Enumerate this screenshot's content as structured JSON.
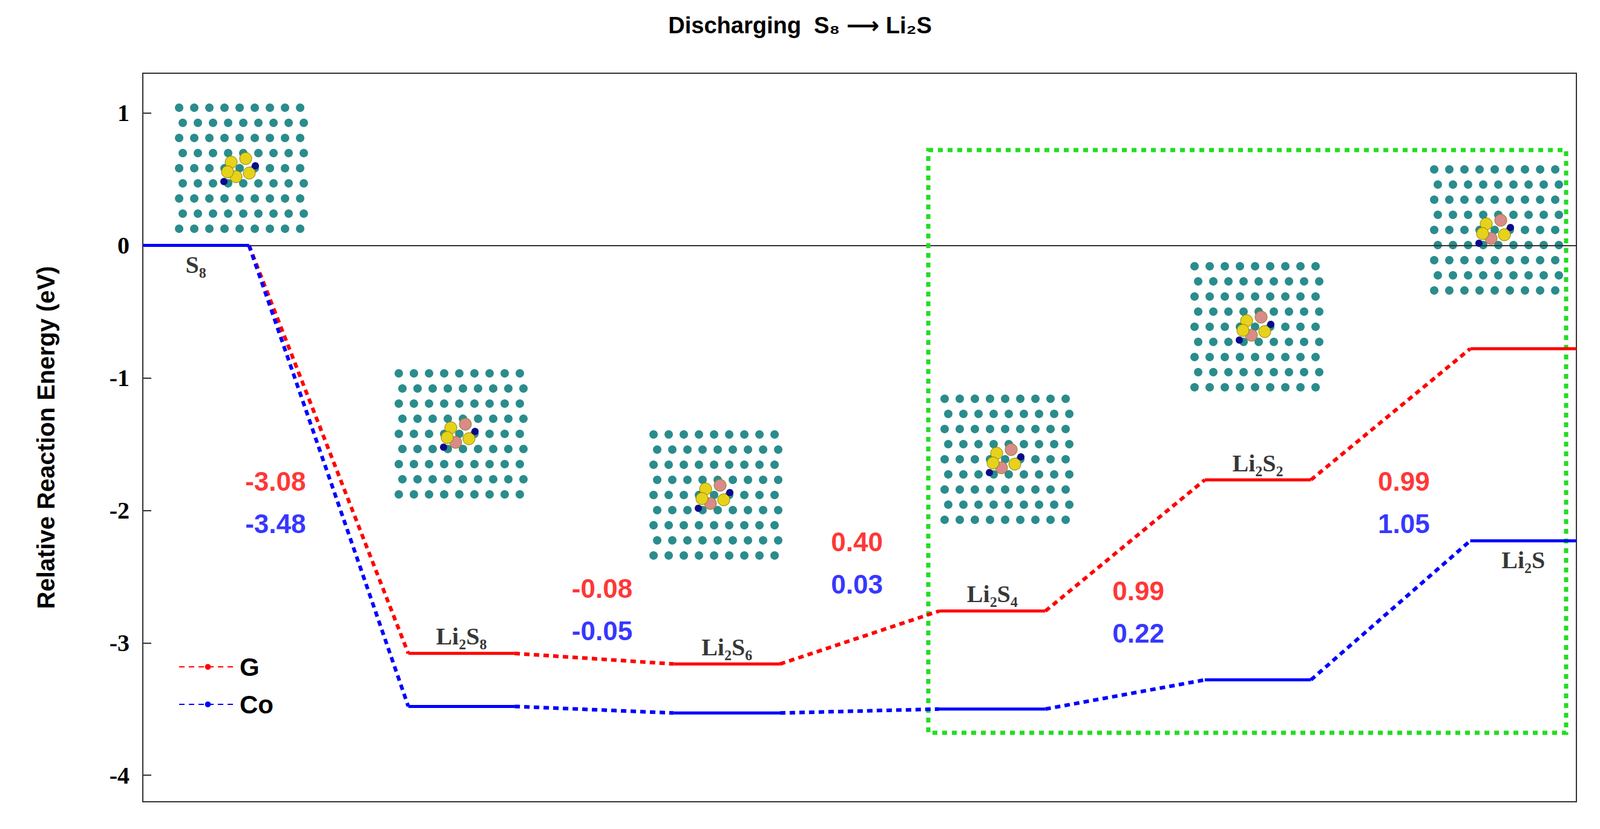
{
  "chart_data": {
    "type": "energy_profile",
    "title": "Discharging  S₈ ⟶ Li₂S",
    "y_label": "Relative Reaction Energy (eV)",
    "categories": [
      "S₈",
      "Li₂S₈",
      "Li₂S₆",
      "Li₂S₄",
      "Li₂S₂",
      "Li₂S"
    ],
    "series": [
      {
        "name": "G",
        "color": "#ff0000",
        "line_style": "dotted",
        "values": [
          0,
          -3.08,
          -3.16,
          -2.76,
          -1.77,
          -0.78
        ],
        "steps": [
          -3.08,
          -0.08,
          0.4,
          0.99,
          0.99
        ],
        "step_labels": [
          "-3.08",
          "-0.08",
          "0.40",
          "0.99",
          "0.99"
        ]
      },
      {
        "name": "Co",
        "color": "#0000ff",
        "line_style": "dotted",
        "values": [
          0,
          -3.48,
          -3.53,
          -3.5,
          -3.28,
          -2.23
        ],
        "steps": [
          -3.48,
          -0.05,
          0.03,
          0.22,
          1.05
        ],
        "step_labels": [
          "-3.48",
          "-0.05",
          "0.03",
          "0.22",
          "1.05"
        ]
      }
    ],
    "ylim": [
      -4.2,
      1.3
    ],
    "yticks": [
      -4,
      -3,
      -2,
      -1,
      0,
      1
    ],
    "legend": "lower left",
    "tick_labels": "y",
    "grid": false
  }
}
